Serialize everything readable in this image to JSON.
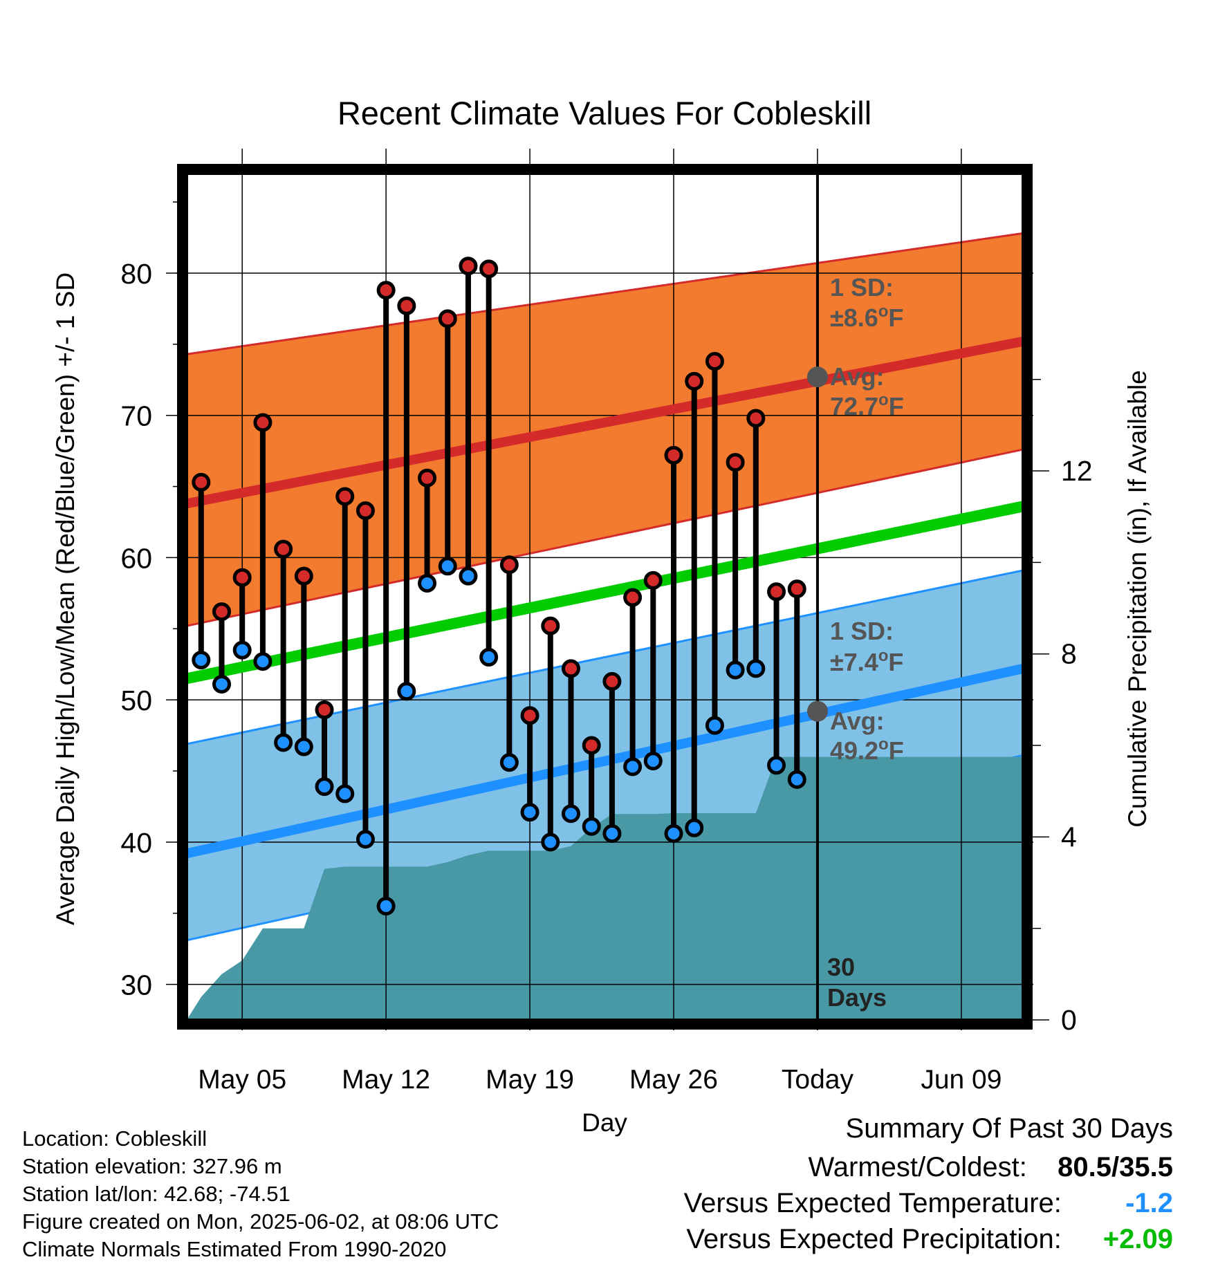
{
  "chart_data": {
    "type": "line",
    "title": "Recent Climate Values For Cobleskill",
    "xlabel": "Day",
    "ylabel": "Average Daily High/Low/Mean (Red/Blue/Green) +/- 1 SD",
    "y2label": "Cumulative Precipitation (in), If Available",
    "ylim": [
      27.5,
      87
    ],
    "y2lim": [
      0,
      18.5
    ],
    "x_tick_labels": [
      "May 05",
      "May 12",
      "May 19",
      "May 26",
      "Today",
      "Jun 09"
    ],
    "x_tick_days": [
      5,
      12,
      19,
      26,
      33,
      40
    ],
    "y_ticks": [
      30,
      40,
      50,
      60,
      70,
      80
    ],
    "y2_ticks": [
      0,
      4,
      8,
      12
    ],
    "xlim": [
      2.3,
      43.0
    ],
    "today_day": 33,
    "days_label": "30\nDays",
    "observations": {
      "days": [
        3,
        4,
        5,
        6,
        7,
        8,
        9,
        10,
        11,
        12,
        13,
        14,
        15,
        16,
        17,
        18,
        19,
        20,
        21,
        22,
        23,
        24,
        25,
        26,
        27,
        28,
        29,
        30,
        31,
        32
      ],
      "high": [
        65.3,
        56.2,
        58.6,
        69.5,
        60.6,
        58.7,
        49.3,
        64.3,
        63.3,
        78.8,
        77.7,
        65.6,
        76.8,
        80.5,
        80.3,
        59.5,
        48.9,
        55.2,
        52.2,
        46.8,
        51.3,
        57.2,
        58.4,
        67.2,
        72.4,
        73.8,
        66.7,
        69.8,
        57.6,
        57.8
      ],
      "low": [
        52.8,
        51.1,
        53.5,
        52.7,
        47.0,
        46.7,
        43.9,
        43.4,
        40.2,
        35.5,
        50.6,
        58.2,
        59.4,
        58.7,
        53.0,
        45.6,
        42.1,
        40.0,
        42.0,
        41.1,
        40.6,
        45.3,
        45.7,
        40.6,
        41.0,
        48.2,
        52.1,
        52.2,
        45.4,
        44.4
      ]
    },
    "normals": {
      "days": [
        2.3,
        43.0
      ],
      "avg_high": [
        63.8,
        75.2
      ],
      "high_sd_upper": [
        74.3,
        82.8
      ],
      "high_sd_lower": [
        55.2,
        67.6
      ],
      "avg_mean": [
        51.5,
        63.6
      ],
      "avg_low": [
        39.2,
        52.2
      ],
      "low_sd_upper": [
        46.9,
        59.1
      ],
      "low_sd_lower": [
        33.1,
        46.1
      ]
    },
    "precipitation": {
      "days": [
        2.3,
        3,
        4,
        5,
        6,
        7,
        8,
        9,
        10,
        11,
        12,
        13,
        14,
        15,
        16,
        17,
        18,
        19,
        20,
        21,
        22,
        23,
        24,
        25,
        26,
        27,
        28,
        29,
        30,
        31,
        32,
        43.0
      ],
      "cumulative": [
        0,
        0.5,
        1.0,
        1.3,
        2.0,
        2.0,
        2.0,
        3.3,
        3.35,
        3.35,
        3.35,
        3.35,
        3.35,
        3.45,
        3.6,
        3.7,
        3.7,
        3.7,
        3.7,
        3.8,
        4.2,
        4.5,
        4.5,
        4.5,
        4.52,
        4.52,
        4.52,
        4.52,
        4.52,
        5.75,
        5.75,
        5.75
      ]
    },
    "annotations": {
      "high_sd_line1": "1 SD:",
      "high_sd_line2": "±8.6",
      "high_avg_line1": "Avg:",
      "high_avg_line2": "72.7",
      "low_sd_line1": "1 SD:",
      "low_sd_line2": "±7.4",
      "low_avg_line1": "Avg:",
      "low_avg_line2": "49.2",
      "deg_sup": "o",
      "unit": "F",
      "high_avg_value": 72.7,
      "low_avg_value": 49.2
    },
    "colors": {
      "high_band": "#f27b2f",
      "high_line": "#d42a2a",
      "mean_line": "#00cc00",
      "low_band": "#80c1e8",
      "low_line": "#1e90ff",
      "precip": "#4899a5",
      "high_dot": "#d42a2a",
      "low_dot": "#1e90ff",
      "annotation_text": "#555555",
      "marker": "#555555"
    }
  },
  "footer": {
    "location": "Location: Cobleskill",
    "elevation": "Station elevation: 327.96 m",
    "latlon": "Station lat/lon: 42.68; -74.51",
    "created": "Figure created on Mon, 2025-06-02, at 08:06 UTC",
    "normals": "Climate Normals Estimated From 1990-2020"
  },
  "summary": {
    "title": "Summary Of Past 30 Days",
    "warm_cold_label": "Warmest/Coldest:",
    "warm_cold_value": "80.5/35.5",
    "temp_label": "Versus Expected Temperature:",
    "temp_value": "-1.2",
    "temp_color": "#1e90ff",
    "precip_label": "Versus Expected Precipitation:",
    "precip_value": "+2.09",
    "precip_color": "#00bb00"
  }
}
